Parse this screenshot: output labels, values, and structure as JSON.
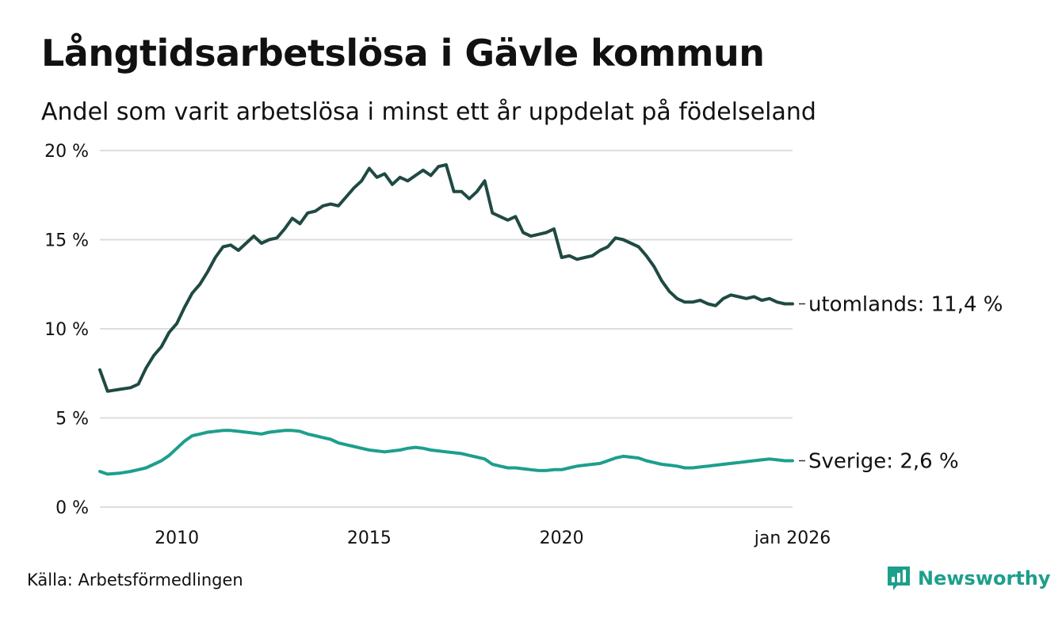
{
  "header": {
    "title": "Långtidsarbetslösa i Gävle kommun",
    "subtitle": "Andel som varit arbetslösa i minst ett år uppdelat på födelseland"
  },
  "footer": {
    "source": "Källa: Arbetsförmedlingen",
    "brand": "Newsworthy"
  },
  "colors": {
    "utomlands": "#1f4a43",
    "sverige": "#1d9f8c",
    "grid": "#dddddd",
    "brand": "#1d9f8c"
  },
  "chart_data": {
    "type": "line",
    "title": "Långtidsarbetslösa i Gävle kommun",
    "subtitle": "Andel som varit arbetslösa i minst ett år uppdelat på födelseland",
    "xlabel": "",
    "ylabel": "",
    "xlim": [
      2008.0,
      2026.0
    ],
    "ylim": [
      0,
      20
    ],
    "grid": true,
    "x_ticks": [
      {
        "value": 2010,
        "label": "2010"
      },
      {
        "value": 2015,
        "label": "2015"
      },
      {
        "value": 2020,
        "label": "2020"
      },
      {
        "value": 2026,
        "label": "jan 2026"
      }
    ],
    "y_ticks": [
      {
        "value": 0,
        "label": "0 %"
      },
      {
        "value": 5,
        "label": "5 %"
      },
      {
        "value": 10,
        "label": "10 %"
      },
      {
        "value": 15,
        "label": "15 %"
      },
      {
        "value": 20,
        "label": "20 %"
      }
    ],
    "series": [
      {
        "name": "utomlands",
        "end_label": "utomlands: 11,4 %",
        "x": [
          2008.0,
          2008.2,
          2008.5,
          2008.8,
          2009.0,
          2009.2,
          2009.4,
          2009.6,
          2009.8,
          2010.0,
          2010.2,
          2010.4,
          2010.6,
          2010.8,
          2011.0,
          2011.2,
          2011.4,
          2011.6,
          2011.8,
          2012.0,
          2012.2,
          2012.4,
          2012.6,
          2012.8,
          2013.0,
          2013.2,
          2013.4,
          2013.6,
          2013.8,
          2014.0,
          2014.2,
          2014.4,
          2014.6,
          2014.8,
          2015.0,
          2015.2,
          2015.4,
          2015.6,
          2015.8,
          2016.0,
          2016.2,
          2016.4,
          2016.6,
          2016.8,
          2017.0,
          2017.2,
          2017.4,
          2017.6,
          2017.8,
          2018.0,
          2018.2,
          2018.4,
          2018.6,
          2018.8,
          2019.0,
          2019.2,
          2019.4,
          2019.6,
          2019.8,
          2020.0,
          2020.2,
          2020.4,
          2020.6,
          2020.8,
          2021.0,
          2021.2,
          2021.4,
          2021.6,
          2021.8,
          2022.0,
          2022.2,
          2022.4,
          2022.6,
          2022.8,
          2023.0,
          2023.2,
          2023.4,
          2023.6,
          2023.8,
          2024.0,
          2024.2,
          2024.4,
          2024.6,
          2024.8,
          2025.0,
          2025.2,
          2025.4,
          2025.6,
          2025.8,
          2026.0
        ],
        "values": [
          7.7,
          6.5,
          6.6,
          6.7,
          6.9,
          7.8,
          8.5,
          9.0,
          9.8,
          10.3,
          11.2,
          12.0,
          12.5,
          13.2,
          14.0,
          14.6,
          14.7,
          14.4,
          14.8,
          15.2,
          14.8,
          15.0,
          15.1,
          15.6,
          16.2,
          15.9,
          16.5,
          16.6,
          16.9,
          17.0,
          16.9,
          17.4,
          17.9,
          18.3,
          19.0,
          18.5,
          18.7,
          18.1,
          18.5,
          18.3,
          18.6,
          18.9,
          18.6,
          19.1,
          19.2,
          17.7,
          17.7,
          17.3,
          17.7,
          18.3,
          16.5,
          16.3,
          16.1,
          16.3,
          15.4,
          15.2,
          15.3,
          15.4,
          15.6,
          14.0,
          14.1,
          13.9,
          14.0,
          14.1,
          14.4,
          14.6,
          15.1,
          15.0,
          14.8,
          14.6,
          14.1,
          13.5,
          12.7,
          12.1,
          11.7,
          11.5,
          11.5,
          11.6,
          11.4,
          11.3,
          11.7,
          11.9,
          11.8,
          11.7,
          11.8,
          11.6,
          11.7,
          11.5,
          11.4,
          11.4
        ]
      },
      {
        "name": "Sverige",
        "end_label": "Sverige:  2,6 %",
        "x": [
          2008.0,
          2008.2,
          2008.5,
          2008.8,
          2009.0,
          2009.2,
          2009.4,
          2009.6,
          2009.8,
          2010.0,
          2010.2,
          2010.4,
          2010.6,
          2010.8,
          2011.0,
          2011.2,
          2011.4,
          2011.6,
          2011.8,
          2012.0,
          2012.2,
          2012.4,
          2012.6,
          2012.8,
          2013.0,
          2013.2,
          2013.4,
          2013.6,
          2013.8,
          2014.0,
          2014.2,
          2014.4,
          2014.6,
          2014.8,
          2015.0,
          2015.2,
          2015.4,
          2015.6,
          2015.8,
          2016.0,
          2016.2,
          2016.4,
          2016.6,
          2016.8,
          2017.0,
          2017.2,
          2017.4,
          2017.6,
          2017.8,
          2018.0,
          2018.2,
          2018.4,
          2018.6,
          2018.8,
          2019.0,
          2019.2,
          2019.4,
          2019.6,
          2019.8,
          2020.0,
          2020.2,
          2020.4,
          2020.6,
          2020.8,
          2021.0,
          2021.2,
          2021.4,
          2021.6,
          2021.8,
          2022.0,
          2022.2,
          2022.4,
          2022.6,
          2022.8,
          2023.0,
          2023.2,
          2023.4,
          2023.6,
          2023.8,
          2024.0,
          2024.2,
          2024.4,
          2024.6,
          2024.8,
          2025.0,
          2025.2,
          2025.4,
          2025.6,
          2025.8,
          2026.0
        ],
        "values": [
          2.0,
          1.85,
          1.9,
          2.0,
          2.1,
          2.2,
          2.4,
          2.6,
          2.9,
          3.3,
          3.7,
          4.0,
          4.1,
          4.2,
          4.25,
          4.3,
          4.3,
          4.25,
          4.2,
          4.15,
          4.1,
          4.2,
          4.25,
          4.3,
          4.3,
          4.25,
          4.1,
          4.0,
          3.9,
          3.8,
          3.6,
          3.5,
          3.4,
          3.3,
          3.2,
          3.15,
          3.1,
          3.15,
          3.2,
          3.3,
          3.35,
          3.3,
          3.2,
          3.15,
          3.1,
          3.05,
          3.0,
          2.9,
          2.8,
          2.7,
          2.4,
          2.3,
          2.2,
          2.2,
          2.15,
          2.1,
          2.05,
          2.05,
          2.1,
          2.1,
          2.2,
          2.3,
          2.35,
          2.4,
          2.45,
          2.6,
          2.75,
          2.85,
          2.8,
          2.75,
          2.6,
          2.5,
          2.4,
          2.35,
          2.3,
          2.2,
          2.2,
          2.25,
          2.3,
          2.35,
          2.4,
          2.45,
          2.5,
          2.55,
          2.6,
          2.65,
          2.7,
          2.65,
          2.6,
          2.6
        ]
      }
    ]
  }
}
